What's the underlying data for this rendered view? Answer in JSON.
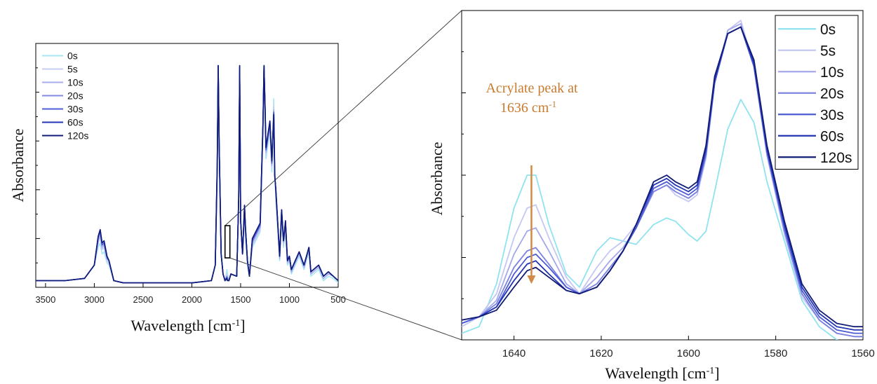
{
  "chart_data": [
    {
      "type": "line",
      "panel": "overview",
      "xlabel": "Wavelength [cm",
      "xlabel_sup": "-1",
      "xlabel_close": "]",
      "ylabel": "Absorbance",
      "xlim": [
        3600,
        500
      ],
      "ylim": [
        0,
        1.1
      ],
      "x_reversed": true,
      "x_ticks": [
        3500,
        3000,
        2500,
        2000,
        1500,
        1000,
        500
      ],
      "legend_position": "top-left",
      "zoom_box": {
        "x_from": 1660,
        "x_to": 1610
      },
      "x": [
        3600,
        3300,
        3100,
        3000,
        2960,
        2940,
        2920,
        2900,
        2870,
        2850,
        2800,
        2700,
        2000,
        1800,
        1760,
        1740,
        1730,
        1720,
        1700,
        1680,
        1660,
        1640,
        1636,
        1620,
        1600,
        1540,
        1520,
        1510,
        1500,
        1480,
        1460,
        1450,
        1430,
        1410,
        1380,
        1300,
        1270,
        1260,
        1250,
        1240,
        1200,
        1180,
        1160,
        1150,
        1140,
        1100,
        1080,
        1060,
        1040,
        1020,
        1000,
        980,
        900,
        850,
        800,
        780,
        700,
        650,
        600,
        550,
        500
      ],
      "series": [
        {
          "name": "0s",
          "color": "#a6e6f2",
          "values": [
            0.03,
            0.03,
            0.04,
            0.1,
            0.18,
            0.2,
            0.15,
            0.16,
            0.11,
            0.1,
            0.03,
            0.02,
            0.02,
            0.03,
            0.1,
            0.45,
            0.95,
            0.6,
            0.15,
            0.06,
            0.03,
            0.08,
            0.06,
            0.03,
            0.06,
            0.05,
            0.4,
            0.95,
            0.3,
            0.15,
            0.32,
            0.22,
            0.1,
            0.05,
            0.18,
            0.25,
            0.7,
            0.96,
            0.78,
            0.58,
            0.7,
            0.52,
            0.85,
            0.55,
            0.4,
            0.12,
            0.3,
            0.18,
            0.25,
            0.1,
            0.12,
            0.06,
            0.14,
            0.08,
            0.16,
            0.05,
            0.08,
            0.03,
            0.05,
            0.04,
            0.02
          ]
        },
        {
          "name": "5s",
          "color": "#c7ccf2",
          "values": [
            0.03,
            0.03,
            0.04,
            0.1,
            0.2,
            0.23,
            0.17,
            0.18,
            0.12,
            0.11,
            0.03,
            0.02,
            0.02,
            0.03,
            0.1,
            0.5,
            0.98,
            0.62,
            0.15,
            0.06,
            0.03,
            0.06,
            0.045,
            0.03,
            0.06,
            0.05,
            0.4,
            0.97,
            0.3,
            0.15,
            0.34,
            0.24,
            0.11,
            0.05,
            0.19,
            0.26,
            0.72,
            0.98,
            0.8,
            0.6,
            0.72,
            0.54,
            0.82,
            0.53,
            0.42,
            0.13,
            0.32,
            0.19,
            0.27,
            0.11,
            0.13,
            0.07,
            0.15,
            0.09,
            0.17,
            0.06,
            0.09,
            0.04,
            0.06,
            0.05,
            0.03
          ]
        },
        {
          "name": "10s",
          "color": "#a8acec",
          "values": [
            0.03,
            0.03,
            0.04,
            0.1,
            0.21,
            0.24,
            0.18,
            0.19,
            0.13,
            0.12,
            0.03,
            0.02,
            0.02,
            0.03,
            0.1,
            0.52,
            0.99,
            0.63,
            0.15,
            0.06,
            0.03,
            0.05,
            0.04,
            0.03,
            0.06,
            0.05,
            0.4,
            0.98,
            0.3,
            0.15,
            0.35,
            0.25,
            0.11,
            0.05,
            0.2,
            0.27,
            0.73,
            0.99,
            0.81,
            0.61,
            0.73,
            0.55,
            0.8,
            0.52,
            0.43,
            0.13,
            0.33,
            0.2,
            0.28,
            0.11,
            0.13,
            0.07,
            0.15,
            0.09,
            0.17,
            0.06,
            0.09,
            0.04,
            0.06,
            0.05,
            0.03
          ]
        },
        {
          "name": "20s",
          "color": "#8088e4",
          "values": [
            0.03,
            0.03,
            0.04,
            0.1,
            0.22,
            0.25,
            0.19,
            0.2,
            0.13,
            0.12,
            0.03,
            0.02,
            0.02,
            0.03,
            0.1,
            0.53,
            1.0,
            0.64,
            0.15,
            0.06,
            0.03,
            0.05,
            0.035,
            0.03,
            0.06,
            0.05,
            0.4,
            0.99,
            0.3,
            0.15,
            0.36,
            0.26,
            0.12,
            0.05,
            0.21,
            0.28,
            0.74,
            1.0,
            0.82,
            0.62,
            0.74,
            0.56,
            0.79,
            0.51,
            0.44,
            0.14,
            0.34,
            0.21,
            0.29,
            0.12,
            0.14,
            0.08,
            0.16,
            0.1,
            0.18,
            0.07,
            0.1,
            0.05,
            0.07,
            0.05,
            0.03
          ]
        },
        {
          "name": "30s",
          "color": "#4f5fd6",
          "values": [
            0.03,
            0.03,
            0.04,
            0.1,
            0.23,
            0.25,
            0.19,
            0.2,
            0.14,
            0.12,
            0.03,
            0.02,
            0.02,
            0.03,
            0.1,
            0.54,
            1.0,
            0.64,
            0.15,
            0.06,
            0.03,
            0.045,
            0.033,
            0.03,
            0.06,
            0.05,
            0.4,
            0.99,
            0.3,
            0.15,
            0.36,
            0.26,
            0.12,
            0.05,
            0.21,
            0.28,
            0.74,
            1.0,
            0.82,
            0.62,
            0.74,
            0.56,
            0.79,
            0.51,
            0.44,
            0.14,
            0.34,
            0.21,
            0.29,
            0.12,
            0.14,
            0.08,
            0.16,
            0.1,
            0.18,
            0.07,
            0.1,
            0.05,
            0.07,
            0.05,
            0.03
          ]
        },
        {
          "name": "60s",
          "color": "#2334b8",
          "values": [
            0.03,
            0.03,
            0.04,
            0.1,
            0.23,
            0.26,
            0.2,
            0.21,
            0.14,
            0.12,
            0.03,
            0.02,
            0.02,
            0.03,
            0.1,
            0.55,
            1.0,
            0.65,
            0.15,
            0.06,
            0.03,
            0.043,
            0.031,
            0.03,
            0.06,
            0.05,
            0.4,
            1.0,
            0.3,
            0.15,
            0.37,
            0.27,
            0.12,
            0.05,
            0.22,
            0.29,
            0.75,
            1.0,
            0.83,
            0.63,
            0.75,
            0.57,
            0.78,
            0.5,
            0.45,
            0.14,
            0.35,
            0.21,
            0.3,
            0.12,
            0.14,
            0.08,
            0.16,
            0.1,
            0.18,
            0.07,
            0.1,
            0.05,
            0.07,
            0.05,
            0.03
          ]
        },
        {
          "name": "120s",
          "color": "#101c78",
          "values": [
            0.03,
            0.03,
            0.04,
            0.1,
            0.23,
            0.26,
            0.2,
            0.21,
            0.14,
            0.12,
            0.03,
            0.02,
            0.02,
            0.03,
            0.1,
            0.55,
            1.0,
            0.65,
            0.15,
            0.06,
            0.03,
            0.04,
            0.03,
            0.03,
            0.06,
            0.05,
            0.4,
            1.0,
            0.3,
            0.15,
            0.37,
            0.27,
            0.12,
            0.05,
            0.22,
            0.29,
            0.75,
            1.0,
            0.83,
            0.63,
            0.75,
            0.57,
            0.78,
            0.5,
            0.45,
            0.14,
            0.35,
            0.21,
            0.3,
            0.12,
            0.14,
            0.08,
            0.16,
            0.1,
            0.18,
            0.07,
            0.1,
            0.05,
            0.07,
            0.05,
            0.03
          ]
        }
      ]
    },
    {
      "type": "line",
      "panel": "zoom",
      "xlabel": "Wavelength [cm",
      "xlabel_sup": "-1",
      "xlabel_close": "]",
      "ylabel": "Absorbance",
      "xlim": [
        1652,
        1560
      ],
      "ylim": [
        0,
        1.0
      ],
      "x_reversed": true,
      "x_ticks": [
        1640,
        1620,
        1600,
        1580,
        1560
      ],
      "legend_position": "top-right",
      "annotation": {
        "line1": "Acrylate peak at",
        "line2": "1636  cm",
        "line2_sup": "-1",
        "color": "#c87b2e",
        "arrow_x": 1636,
        "arrow_from": 0.53,
        "arrow_to": 0.17
      },
      "x": [
        1652,
        1648,
        1644,
        1640,
        1637,
        1635,
        1632,
        1628,
        1625,
        1621,
        1618,
        1615,
        1612,
        1608,
        1605,
        1603,
        1600,
        1598,
        1596,
        1594,
        1591,
        1588,
        1585,
        1582,
        1578,
        1574,
        1570,
        1566,
        1562,
        1560
      ],
      "series": [
        {
          "name": "0s",
          "color": "#8fe3ef",
          "values": [
            0.02,
            0.04,
            0.17,
            0.4,
            0.5,
            0.5,
            0.35,
            0.2,
            0.16,
            0.27,
            0.31,
            0.3,
            0.29,
            0.35,
            0.37,
            0.36,
            0.32,
            0.3,
            0.33,
            0.45,
            0.64,
            0.73,
            0.66,
            0.48,
            0.3,
            0.12,
            0.04,
            0.0,
            -0.03,
            -0.04
          ]
        },
        {
          "name": "5s",
          "color": "#c4c8f2",
          "values": [
            0.04,
            0.07,
            0.14,
            0.31,
            0.4,
            0.41,
            0.31,
            0.19,
            0.14,
            0.22,
            0.27,
            0.3,
            0.35,
            0.45,
            0.47,
            0.44,
            0.42,
            0.44,
            0.55,
            0.78,
            0.94,
            0.97,
            0.83,
            0.56,
            0.32,
            0.13,
            0.06,
            0.02,
            0.01,
            0.01
          ]
        },
        {
          "name": "10s",
          "color": "#a4a8ea",
          "values": [
            0.05,
            0.07,
            0.12,
            0.26,
            0.33,
            0.34,
            0.27,
            0.17,
            0.14,
            0.19,
            0.24,
            0.28,
            0.34,
            0.45,
            0.47,
            0.45,
            0.43,
            0.45,
            0.56,
            0.78,
            0.94,
            0.96,
            0.83,
            0.56,
            0.33,
            0.14,
            0.06,
            0.02,
            0.01,
            0.01
          ]
        },
        {
          "name": "20s",
          "color": "#7b82e0",
          "values": [
            0.05,
            0.07,
            0.11,
            0.22,
            0.27,
            0.28,
            0.23,
            0.16,
            0.14,
            0.17,
            0.22,
            0.27,
            0.34,
            0.45,
            0.47,
            0.45,
            0.43,
            0.45,
            0.56,
            0.78,
            0.93,
            0.95,
            0.83,
            0.57,
            0.33,
            0.14,
            0.06,
            0.02,
            0.01,
            0.01
          ]
        },
        {
          "name": "30s",
          "color": "#4b5bd4",
          "values": [
            0.05,
            0.07,
            0.1,
            0.2,
            0.25,
            0.26,
            0.22,
            0.16,
            0.14,
            0.16,
            0.21,
            0.27,
            0.34,
            0.46,
            0.48,
            0.46,
            0.44,
            0.46,
            0.57,
            0.78,
            0.93,
            0.95,
            0.83,
            0.57,
            0.34,
            0.15,
            0.07,
            0.03,
            0.02,
            0.02
          ]
        },
        {
          "name": "60s",
          "color": "#2233b4",
          "values": [
            0.06,
            0.07,
            0.1,
            0.18,
            0.23,
            0.24,
            0.2,
            0.15,
            0.14,
            0.16,
            0.21,
            0.27,
            0.35,
            0.47,
            0.49,
            0.47,
            0.45,
            0.47,
            0.58,
            0.79,
            0.93,
            0.95,
            0.84,
            0.58,
            0.35,
            0.16,
            0.08,
            0.04,
            0.03,
            0.03
          ]
        },
        {
          "name": "120s",
          "color": "#111c74",
          "values": [
            0.06,
            0.07,
            0.09,
            0.16,
            0.21,
            0.22,
            0.19,
            0.15,
            0.14,
            0.16,
            0.21,
            0.27,
            0.35,
            0.48,
            0.5,
            0.48,
            0.46,
            0.48,
            0.59,
            0.8,
            0.93,
            0.95,
            0.85,
            0.59,
            0.36,
            0.17,
            0.09,
            0.05,
            0.04,
            0.04
          ]
        }
      ]
    }
  ]
}
